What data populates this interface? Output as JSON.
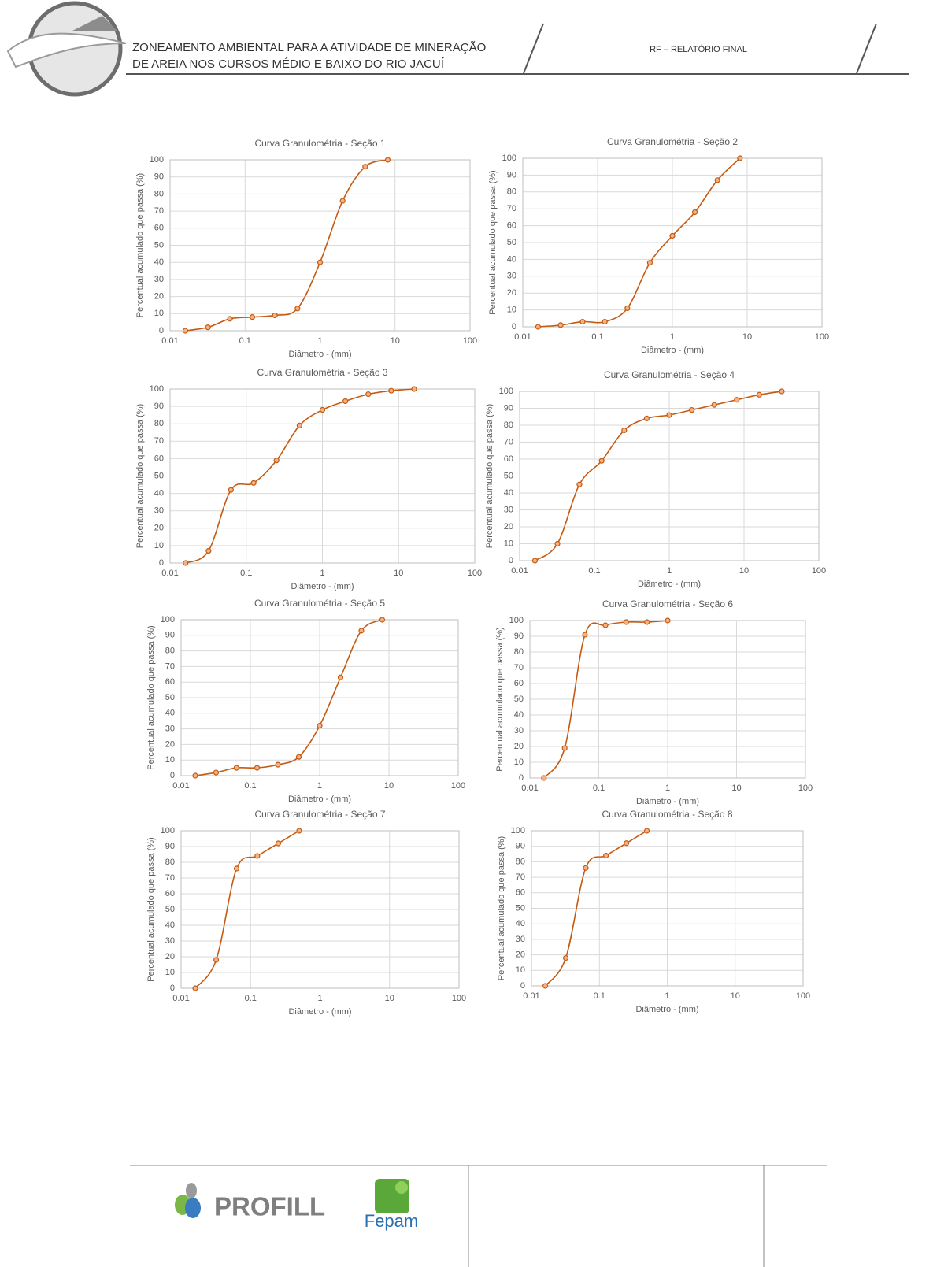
{
  "header": {
    "title_line1": "ZONEAMENTO AMBIENTAL PARA A ATIVIDADE DE MINERAÇÃO",
    "title_line2": "DE AREIA NOS CURSOS MÉDIO E BAIXO DO RIO JACUÍ",
    "report": "RF – RELATÓRIO FINAL"
  },
  "footer": {
    "logo1": "PROFILL",
    "logo2": "Fepam"
  },
  "chart_data": [
    {
      "type": "line",
      "title": "Curva Granulométria - Seção 1",
      "x_label": "Diâmetro - (mm)",
      "y_label": "Percentual acumulado que passa (%)",
      "xscale": "log",
      "grid": true,
      "color": "#c55a11",
      "x": [
        0.016,
        0.032,
        0.063,
        0.125,
        0.25,
        0.5,
        1,
        2,
        4,
        8
      ],
      "values": [
        0,
        2,
        7,
        8,
        9,
        13,
        40,
        76,
        96,
        100
      ],
      "xlim": [
        0.01,
        100
      ],
      "ylim": [
        0,
        100
      ],
      "xticks": [
        0.01,
        0.1,
        1,
        10,
        100
      ],
      "yticks": [
        0,
        10,
        20,
        30,
        40,
        50,
        60,
        70,
        80,
        90,
        100
      ]
    },
    {
      "type": "line",
      "title": "Curva Granulométria - Seção 2",
      "x_label": "Diâmetro - (mm)",
      "y_label": "Percentual acumulado que passa (%)",
      "xscale": "log",
      "grid": true,
      "color": "#c55a11",
      "x": [
        0.016,
        0.032,
        0.063,
        0.125,
        0.25,
        0.5,
        1,
        2,
        4,
        8
      ],
      "values": [
        0,
        1,
        3,
        3,
        11,
        38,
        54,
        68,
        87,
        100
      ],
      "xlim": [
        0.01,
        100
      ],
      "ylim": [
        0,
        100
      ],
      "xticks": [
        0.01,
        0.1,
        1,
        10,
        100
      ],
      "yticks": [
        0,
        10,
        20,
        30,
        40,
        50,
        60,
        70,
        80,
        90,
        100
      ]
    },
    {
      "type": "line",
      "title": "Curva Granulométria - Seção 3",
      "x_label": "Diâmetro - (mm)",
      "y_label": "Percentual acumulado que passa (%)",
      "xscale": "log",
      "grid": true,
      "color": "#c55a11",
      "x": [
        0.016,
        0.032,
        0.063,
        0.125,
        0.25,
        0.5,
        1,
        2,
        4,
        8,
        16
      ],
      "values": [
        0,
        7,
        42,
        46,
        59,
        79,
        88,
        93,
        97,
        99,
        100
      ],
      "xlim": [
        0.01,
        100
      ],
      "ylim": [
        0,
        100
      ],
      "xticks": [
        0.01,
        0.1,
        1,
        10,
        100
      ],
      "yticks": [
        0,
        10,
        20,
        30,
        40,
        50,
        60,
        70,
        80,
        90,
        100
      ]
    },
    {
      "type": "line",
      "title": "Curva Granulométria - Seção 4",
      "x_label": "Diâmetro - (mm)",
      "y_label": "Percentual acumulado que passa (%)",
      "xscale": "log",
      "grid": true,
      "color": "#c55a11",
      "x": [
        0.016,
        0.032,
        0.063,
        0.125,
        0.25,
        0.5,
        1,
        2,
        4,
        8,
        16,
        32
      ],
      "values": [
        0,
        10,
        45,
        59,
        77,
        84,
        86,
        89,
        92,
        95,
        98,
        100
      ],
      "xlim": [
        0.01,
        100
      ],
      "ylim": [
        0,
        100
      ],
      "xticks": [
        0.01,
        0.1,
        1,
        10,
        100
      ],
      "yticks": [
        0,
        10,
        20,
        30,
        40,
        50,
        60,
        70,
        80,
        90,
        100
      ]
    },
    {
      "type": "line",
      "title": "Curva Granulométria - Seção 5",
      "x_label": "Diâmetro - (mm)",
      "y_label": "Percentual acumulado que passa (%)",
      "xscale": "log",
      "grid": true,
      "color": "#c55a11",
      "x": [
        0.016,
        0.032,
        0.063,
        0.125,
        0.25,
        0.5,
        1,
        2,
        4,
        8
      ],
      "values": [
        0,
        2,
        5,
        5,
        7,
        12,
        32,
        63,
        93,
        100
      ],
      "xlim": [
        0.01,
        100
      ],
      "ylim": [
        0,
        100
      ],
      "xticks": [
        0.01,
        0.1,
        1,
        10,
        100
      ],
      "yticks": [
        0,
        10,
        20,
        30,
        40,
        50,
        60,
        70,
        80,
        90,
        100
      ]
    },
    {
      "type": "line",
      "title": "Curva Granulométria - Seção 6",
      "x_label": "Diâmetro - (mm)",
      "y_label": "Percentual acumulado que passa (%)",
      "xscale": "log",
      "grid": true,
      "color": "#c55a11",
      "x": [
        0.016,
        0.032,
        0.063,
        0.125,
        0.25,
        0.5,
        1
      ],
      "values": [
        0,
        19,
        91,
        97,
        99,
        99,
        100
      ],
      "xlim": [
        0.01,
        100
      ],
      "ylim": [
        0,
        100
      ],
      "xticks": [
        0.01,
        0.1,
        1,
        10,
        100
      ],
      "yticks": [
        0,
        10,
        20,
        30,
        40,
        50,
        60,
        70,
        80,
        90,
        100
      ]
    },
    {
      "type": "line",
      "title": "Curva Granulométria - Seção 7",
      "x_label": "Diâmetro - (mm)",
      "y_label": "Percentual acumulado que passa (%)",
      "xscale": "log",
      "grid": true,
      "color": "#c55a11",
      "x": [
        0.016,
        0.032,
        0.063,
        0.125,
        0.25,
        0.5
      ],
      "values": [
        0,
        18,
        76,
        84,
        92,
        100
      ],
      "xlim": [
        0.01,
        100
      ],
      "ylim": [
        0,
        100
      ],
      "xticks": [
        0.01,
        0.1,
        1,
        10,
        100
      ],
      "yticks": [
        0,
        10,
        20,
        30,
        40,
        50,
        60,
        70,
        80,
        90,
        100
      ]
    },
    {
      "type": "line",
      "title": "Curva Granulométria - Seção 8",
      "x_label": "Diâmetro - (mm)",
      "y_label": "Percentual acumulado que passa (%)",
      "xscale": "log",
      "grid": true,
      "color": "#c55a11",
      "x": [
        0.016,
        0.032,
        0.063,
        0.125,
        0.25,
        0.5
      ],
      "values": [
        0,
        18,
        76,
        84,
        92,
        100
      ],
      "xlim": [
        0.01,
        100
      ],
      "ylim": [
        0,
        100
      ],
      "xticks": [
        0.01,
        0.1,
        1,
        10,
        100
      ],
      "yticks": [
        0,
        10,
        20,
        30,
        40,
        50,
        60,
        70,
        80,
        90,
        100
      ]
    }
  ]
}
